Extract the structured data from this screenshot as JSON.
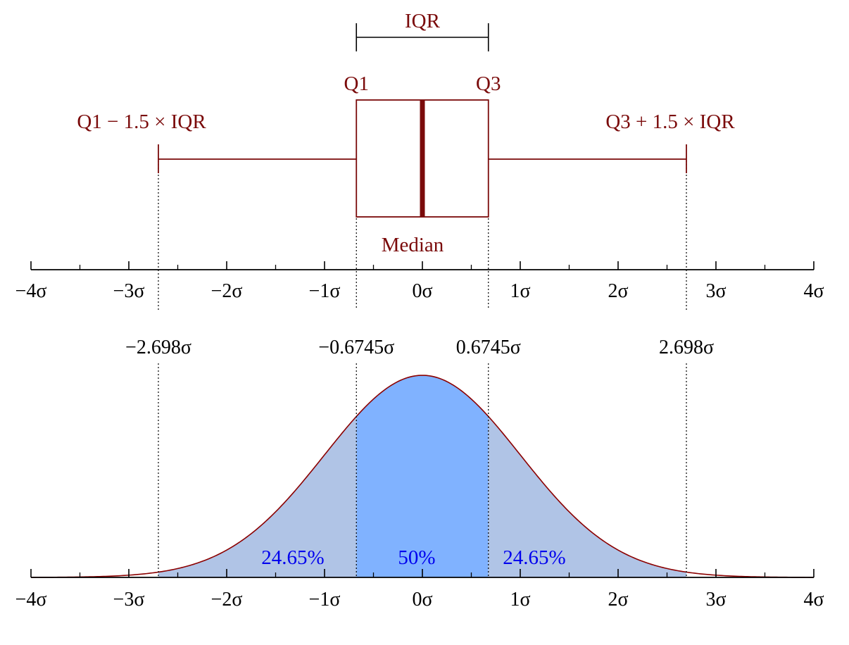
{
  "chart_data": {
    "type": "area",
    "distribution": "normal",
    "mean": 0,
    "sd": 1,
    "xlim": [
      -4,
      4
    ],
    "ticks": [
      {
        "value": -4,
        "label": "−4σ"
      },
      {
        "value": -3,
        "label": "−3σ"
      },
      {
        "value": -2,
        "label": "−2σ"
      },
      {
        "value": -1,
        "label": "−1σ"
      },
      {
        "value": 0,
        "label": "0σ"
      },
      {
        "value": 1,
        "label": "1σ"
      },
      {
        "value": 2,
        "label": "2σ"
      },
      {
        "value": 3,
        "label": "3σ"
      },
      {
        "value": 4,
        "label": "4σ"
      }
    ],
    "boxplot": {
      "q1": -0.6745,
      "median": 0,
      "q3": 0.6745,
      "whisker_low": -2.698,
      "whisker_high": 2.698,
      "labels": {
        "iqr": "IQR",
        "q1": "Q1",
        "q3": "Q3",
        "whisker_low": "Q1 − 1.5 × IQR",
        "whisker_high": "Q3 + 1.5 × IQR",
        "median": "Median"
      }
    },
    "markers": [
      {
        "value": -2.698,
        "label": "−2.698σ"
      },
      {
        "value": -0.6745,
        "label": "−0.6745σ"
      },
      {
        "value": 0.6745,
        "label": "0.6745σ"
      },
      {
        "value": 2.698,
        "label": "2.698σ"
      }
    ],
    "regions": [
      {
        "from": -2.698,
        "to": -0.6745,
        "label": "24.65%"
      },
      {
        "from": -0.6745,
        "to": 0.6745,
        "label": "50%"
      },
      {
        "from": 0.6745,
        "to": 2.698,
        "label": "24.65%"
      }
    ]
  },
  "colors": {
    "box": "#7a0a0a",
    "curve": "#8b0000",
    "outer_fill": "#b0c4e6",
    "inner_fill": "#80b2ff",
    "percent_text": "#0000ee",
    "axis": "#000000"
  }
}
